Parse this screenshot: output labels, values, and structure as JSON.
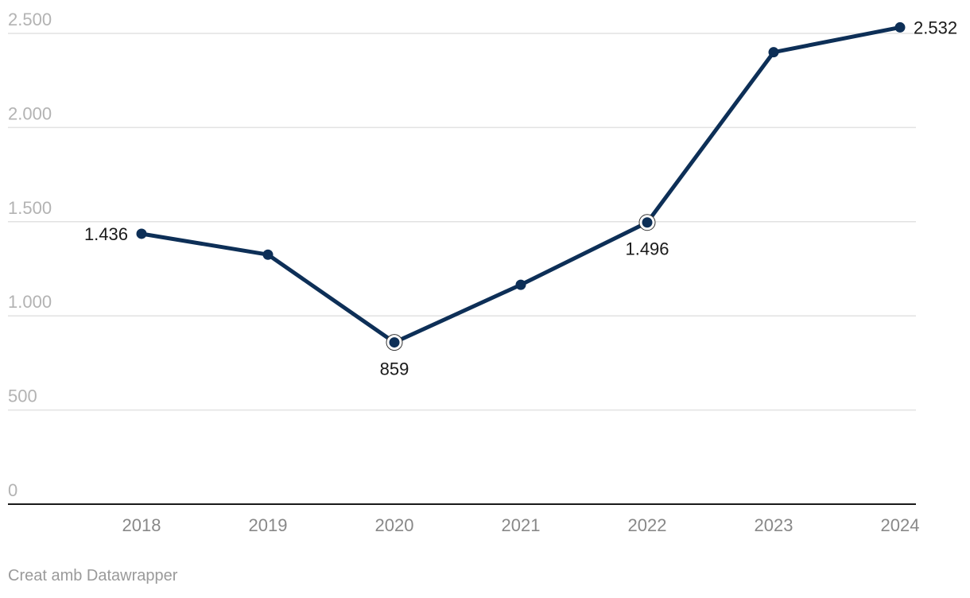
{
  "chart_data": {
    "type": "line",
    "x": [
      "2018",
      "2019",
      "2020",
      "2021",
      "2022",
      "2023",
      "2024"
    ],
    "series": [
      {
        "values": [
          1436,
          1325,
          859,
          1165,
          1496,
          2400,
          2532
        ]
      }
    ],
    "data_labels": [
      {
        "index": 0,
        "text": "1.436",
        "placement": "left"
      },
      {
        "index": 2,
        "text": "859",
        "placement": "below",
        "highlight": true
      },
      {
        "index": 4,
        "text": "1.496",
        "placement": "below",
        "highlight": true
      },
      {
        "index": 6,
        "text": "2.532",
        "placement": "right"
      }
    ],
    "yticks": [
      0,
      500,
      1000,
      1500,
      2000,
      2500
    ],
    "ytick_labels": [
      "0",
      "500",
      "1.000",
      "1.500",
      "2.000",
      "2.500"
    ],
    "ylim": [
      0,
      2500
    ],
    "grid": true,
    "line_color": "#0d2f57",
    "title": "",
    "xlabel": "",
    "ylabel": ""
  },
  "footer": {
    "credit": "Creat amb Datawrapper"
  }
}
